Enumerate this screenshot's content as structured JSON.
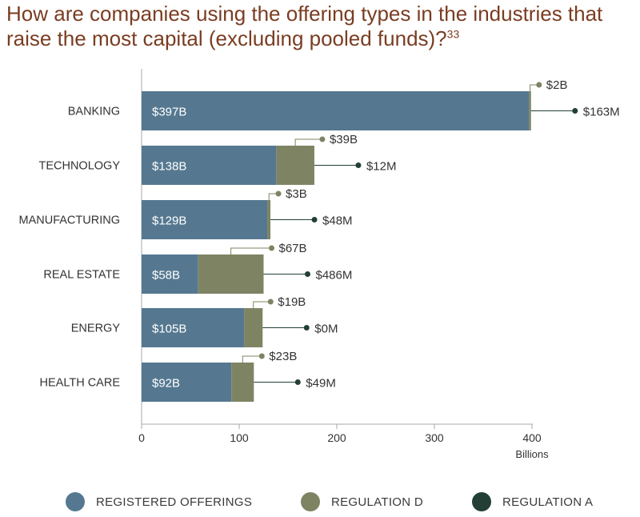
{
  "title": {
    "text": "How are companies using the offering types in the industries that raise the most capital (excluding pooled funds)?",
    "footnote": "33"
  },
  "colors": {
    "registered": "#557890",
    "regd": "#7e8463",
    "rega": "#233f35",
    "axis": "#aaaaaa",
    "text": "#333333"
  },
  "chart_data": {
    "type": "bar",
    "orientation": "horizontal",
    "stacked": true,
    "categories": [
      "BANKING",
      "TECHNOLOGY",
      "MANUFACTURING",
      "REAL ESTATE",
      "ENERGY",
      "HEALTH CARE"
    ],
    "series": [
      {
        "name": "REGISTERED OFFERINGS",
        "values": [
          397,
          138,
          129,
          58,
          105,
          92
        ],
        "labels": [
          "$397B",
          "$138B",
          "$129B",
          "$58B",
          "$105B",
          "$92B"
        ]
      },
      {
        "name": "REGULATION D",
        "values": [
          2,
          39,
          3,
          67,
          19,
          23
        ],
        "labels": [
          "$2B",
          "$39B",
          "$3B",
          "$67B",
          "$19B",
          "$23B"
        ]
      },
      {
        "name": "REGULATION A",
        "values": [
          0.163,
          0.012,
          0.048,
          0.486,
          0,
          0.049
        ],
        "labels": [
          "$163M",
          "$12M",
          "$48M",
          "$486M",
          "$0M",
          "$49M"
        ]
      }
    ],
    "xticks": [
      0,
      100,
      200,
      300,
      400
    ],
    "xlabel": "Billions",
    "xlim": [
      0,
      400
    ],
    "grid": false,
    "legend_position": "bottom"
  }
}
